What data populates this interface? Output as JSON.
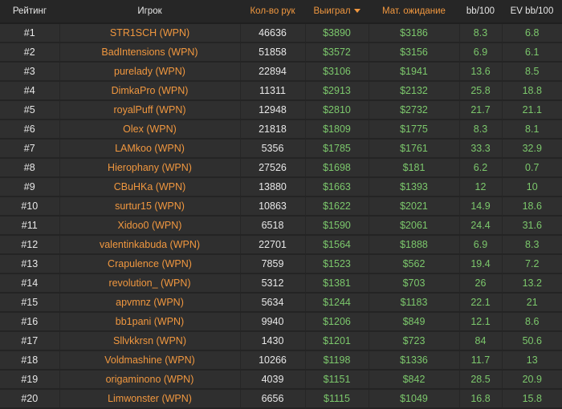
{
  "headers": [
    "Рейтинг",
    "Игрок",
    "Кол-во рук",
    "Выиграл",
    "Мат. ожидание",
    "bb/100",
    "EV bb/100"
  ],
  "sort_column": "Выиграл",
  "colors": {
    "player": "#f0973f",
    "money": "#7cc86c",
    "text": "#e8e8e8",
    "background": "#2f2f2f"
  },
  "rows": [
    [
      "#1",
      "STR1SCH (WPN)",
      "46636",
      "$3890",
      "$3186",
      "8.3",
      "6.8"
    ],
    [
      "#2",
      "BadIntensions (WPN)",
      "51858",
      "$3572",
      "$3156",
      "6.9",
      "6.1"
    ],
    [
      "#3",
      "purelady (WPN)",
      "22894",
      "$3106",
      "$1941",
      "13.6",
      "8.5"
    ],
    [
      "#4",
      "DimkaPro (WPN)",
      "11311",
      "$2913",
      "$2132",
      "25.8",
      "18.8"
    ],
    [
      "#5",
      "royalPuff (WPN)",
      "12948",
      "$2810",
      "$2732",
      "21.7",
      "21.1"
    ],
    [
      "#6",
      "Olex (WPN)",
      "21818",
      "$1809",
      "$1775",
      "8.3",
      "8.1"
    ],
    [
      "#7",
      "LAMkoo (WPN)",
      "5356",
      "$1785",
      "$1761",
      "33.3",
      "32.9"
    ],
    [
      "#8",
      "Hierophany (WPN)",
      "27526",
      "$1698",
      "$181",
      "6.2",
      "0.7"
    ],
    [
      "#9",
      "CBuHKa (WPN)",
      "13880",
      "$1663",
      "$1393",
      "12",
      "10"
    ],
    [
      "#10",
      "surtur15 (WPN)",
      "10863",
      "$1622",
      "$2021",
      "14.9",
      "18.6"
    ],
    [
      "#11",
      "Xidoo0 (WPN)",
      "6518",
      "$1590",
      "$2061",
      "24.4",
      "31.6"
    ],
    [
      "#12",
      "valentinkabuda (WPN)",
      "22701",
      "$1564",
      "$1888",
      "6.9",
      "8.3"
    ],
    [
      "#13",
      "Crapulence (WPN)",
      "7859",
      "$1523",
      "$562",
      "19.4",
      "7.2"
    ],
    [
      "#14",
      "revolution_ (WPN)",
      "5312",
      "$1381",
      "$703",
      "26",
      "13.2"
    ],
    [
      "#15",
      "apvmnz (WPN)",
      "5634",
      "$1244",
      "$1183",
      "22.1",
      "21"
    ],
    [
      "#16",
      "bb1pani (WPN)",
      "9940",
      "$1206",
      "$849",
      "12.1",
      "8.6"
    ],
    [
      "#17",
      "Sllvkkrsn (WPN)",
      "1430",
      "$1201",
      "$723",
      "84",
      "50.6"
    ],
    [
      "#18",
      "Voldmashine (WPN)",
      "10266",
      "$1198",
      "$1336",
      "11.7",
      "13"
    ],
    [
      "#19",
      "origaminono (WPN)",
      "4039",
      "$1151",
      "$842",
      "28.5",
      "20.9"
    ],
    [
      "#20",
      "Limwonster (WPN)",
      "6656",
      "$1115",
      "$1049",
      "16.8",
      "15.8"
    ]
  ]
}
